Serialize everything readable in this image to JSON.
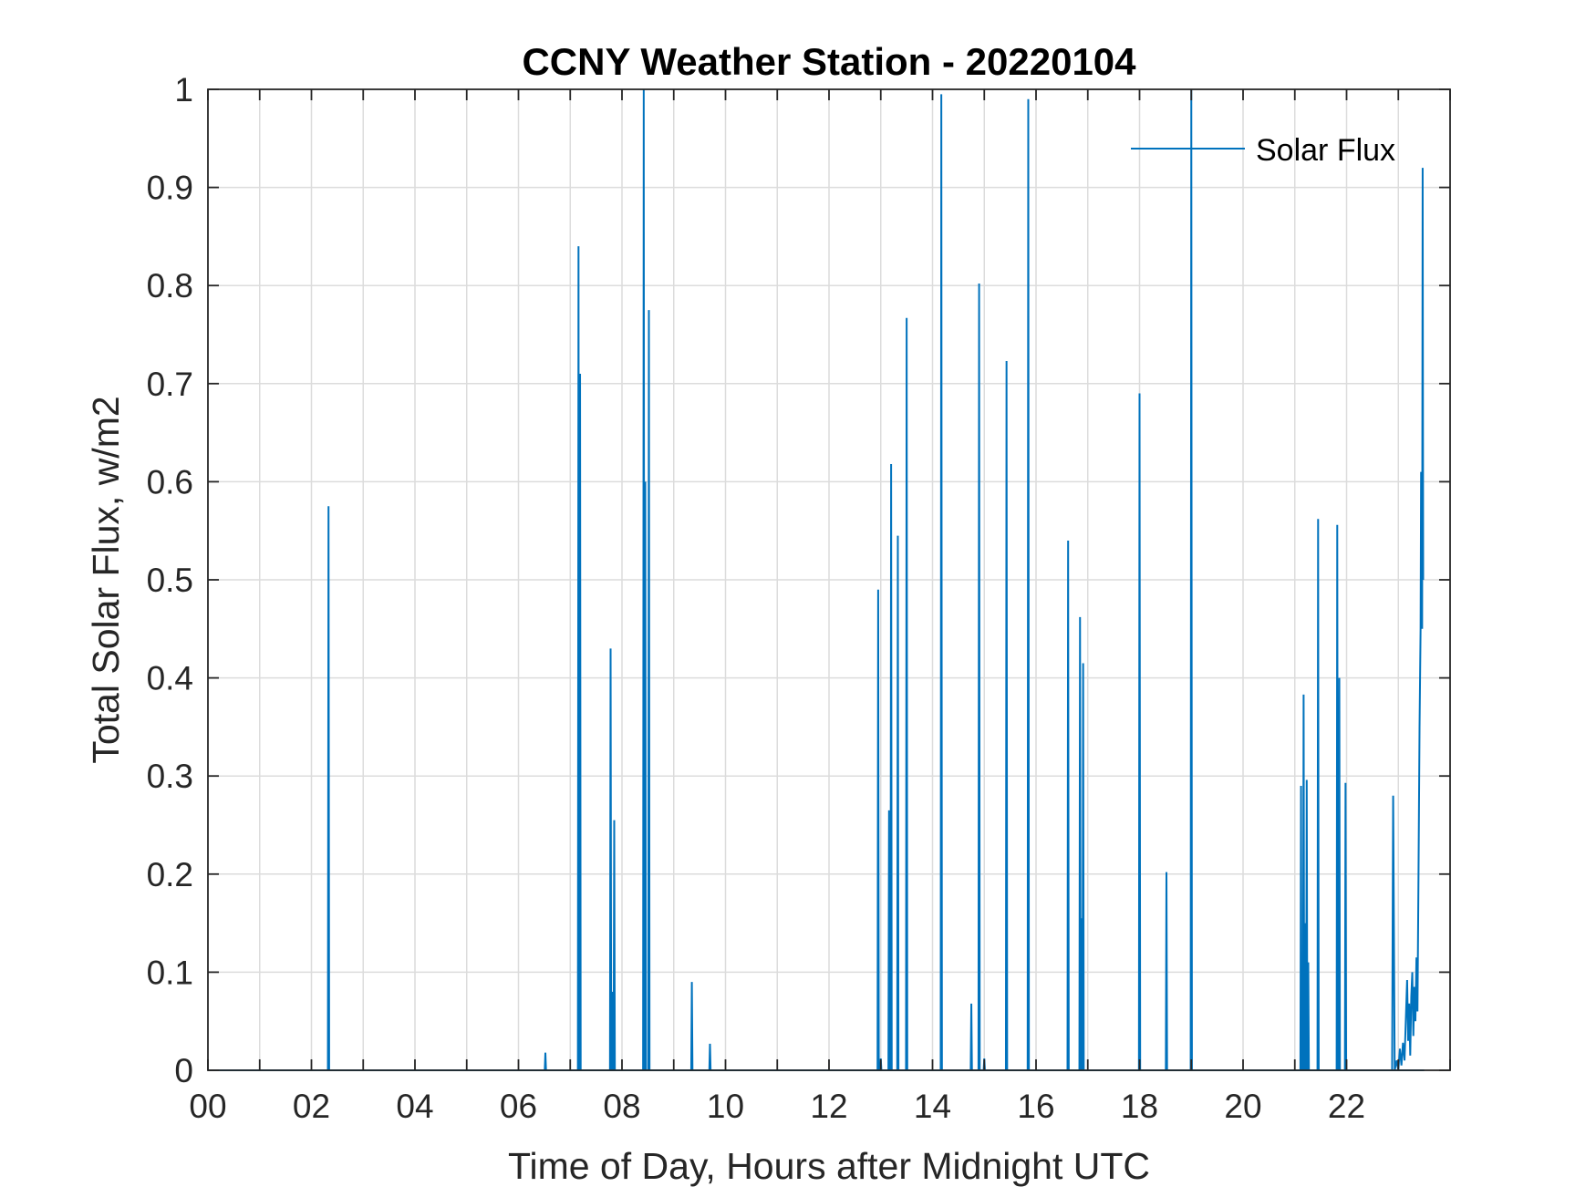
{
  "chart_data": {
    "type": "line",
    "title": "CCNY Weather Station - 20220104",
    "xlabel": "Time of Day, Hours after Midnight UTC",
    "ylabel": "Total Solar Flux, w/m2",
    "xlim": [
      0,
      24
    ],
    "ylim": [
      0,
      1
    ],
    "grid": true,
    "legend_position": "top-right",
    "x_ticks": [
      0,
      2,
      4,
      6,
      8,
      10,
      12,
      14,
      16,
      18,
      20,
      22
    ],
    "x_tick_labels": [
      "00",
      "02",
      "04",
      "06",
      "08",
      "10",
      "12",
      "14",
      "16",
      "18",
      "20",
      "22"
    ],
    "y_ticks": [
      0,
      0.1,
      0.2,
      0.3,
      0.4,
      0.5,
      0.6,
      0.7,
      0.8,
      0.9,
      1
    ],
    "y_tick_labels": [
      "0",
      "0.1",
      "0.2",
      "0.3",
      "0.4",
      "0.5",
      "0.6",
      "0.7",
      "0.8",
      "0.9",
      "1"
    ],
    "series": [
      {
        "name": "Solar Flux",
        "color": "#0072BD",
        "spikes": [
          {
            "x": 2.33,
            "y": 0.575
          },
          {
            "x": 6.52,
            "y": 0.018
          },
          {
            "x": 7.16,
            "y": 0.84
          },
          {
            "x": 7.19,
            "y": 0.71
          },
          {
            "x": 7.78,
            "y": 0.43
          },
          {
            "x": 7.82,
            "y": 0.08
          },
          {
            "x": 7.85,
            "y": 0.255
          },
          {
            "x": 8.42,
            "y": 1.0
          },
          {
            "x": 8.45,
            "y": 0.6
          },
          {
            "x": 8.52,
            "y": 0.775
          },
          {
            "x": 9.35,
            "y": 0.09
          },
          {
            "x": 9.7,
            "y": 0.027
          },
          {
            "x": 12.95,
            "y": 0.49
          },
          {
            "x": 13.0,
            "y": 0.012
          },
          {
            "x": 13.16,
            "y": 0.265
          },
          {
            "x": 13.2,
            "y": 0.618
          },
          {
            "x": 13.33,
            "y": 0.545
          },
          {
            "x": 13.5,
            "y": 0.767
          },
          {
            "x": 14.17,
            "y": 0.995
          },
          {
            "x": 14.75,
            "y": 0.068
          },
          {
            "x": 14.9,
            "y": 0.802
          },
          {
            "x": 15.0,
            "y": 0.012
          },
          {
            "x": 15.43,
            "y": 0.723
          },
          {
            "x": 15.85,
            "y": 0.99
          },
          {
            "x": 16.62,
            "y": 0.54
          },
          {
            "x": 16.85,
            "y": 0.462
          },
          {
            "x": 16.88,
            "y": 0.155
          },
          {
            "x": 16.91,
            "y": 0.415
          },
          {
            "x": 18.0,
            "y": 0.69
          },
          {
            "x": 18.52,
            "y": 0.202
          },
          {
            "x": 19.0,
            "y": 1.0
          },
          {
            "x": 21.12,
            "y": 0.29
          },
          {
            "x": 21.17,
            "y": 0.383
          },
          {
            "x": 21.2,
            "y": 0.15
          },
          {
            "x": 21.23,
            "y": 0.296
          },
          {
            "x": 21.26,
            "y": 0.11
          },
          {
            "x": 21.45,
            "y": 0.562
          },
          {
            "x": 21.82,
            "y": 0.556
          },
          {
            "x": 21.86,
            "y": 0.4
          },
          {
            "x": 21.98,
            "y": 0.293
          }
        ],
        "cluster": [
          [
            22.88,
            0.0
          ],
          [
            22.9,
            0.28
          ],
          [
            22.93,
            0.0
          ],
          [
            22.97,
            0.01
          ],
          [
            23.0,
            0.0
          ],
          [
            23.03,
            0.022
          ],
          [
            23.06,
            0.005
          ],
          [
            23.09,
            0.028
          ],
          [
            23.12,
            0.01
          ],
          [
            23.15,
            0.06
          ],
          [
            23.17,
            0.092
          ],
          [
            23.19,
            0.03
          ],
          [
            23.21,
            0.068
          ],
          [
            23.23,
            0.015
          ],
          [
            23.25,
            0.075
          ],
          [
            23.27,
            0.1
          ],
          [
            23.29,
            0.035
          ],
          [
            23.31,
            0.085
          ],
          [
            23.33,
            0.05
          ],
          [
            23.35,
            0.115
          ],
          [
            23.37,
            0.06
          ],
          [
            23.39,
            0.2
          ],
          [
            23.41,
            0.35
          ],
          [
            23.43,
            0.45
          ],
          [
            23.44,
            0.61
          ],
          [
            23.46,
            0.45
          ],
          [
            23.47,
            0.92
          ],
          [
            23.48,
            0.5
          ]
        ]
      }
    ]
  }
}
